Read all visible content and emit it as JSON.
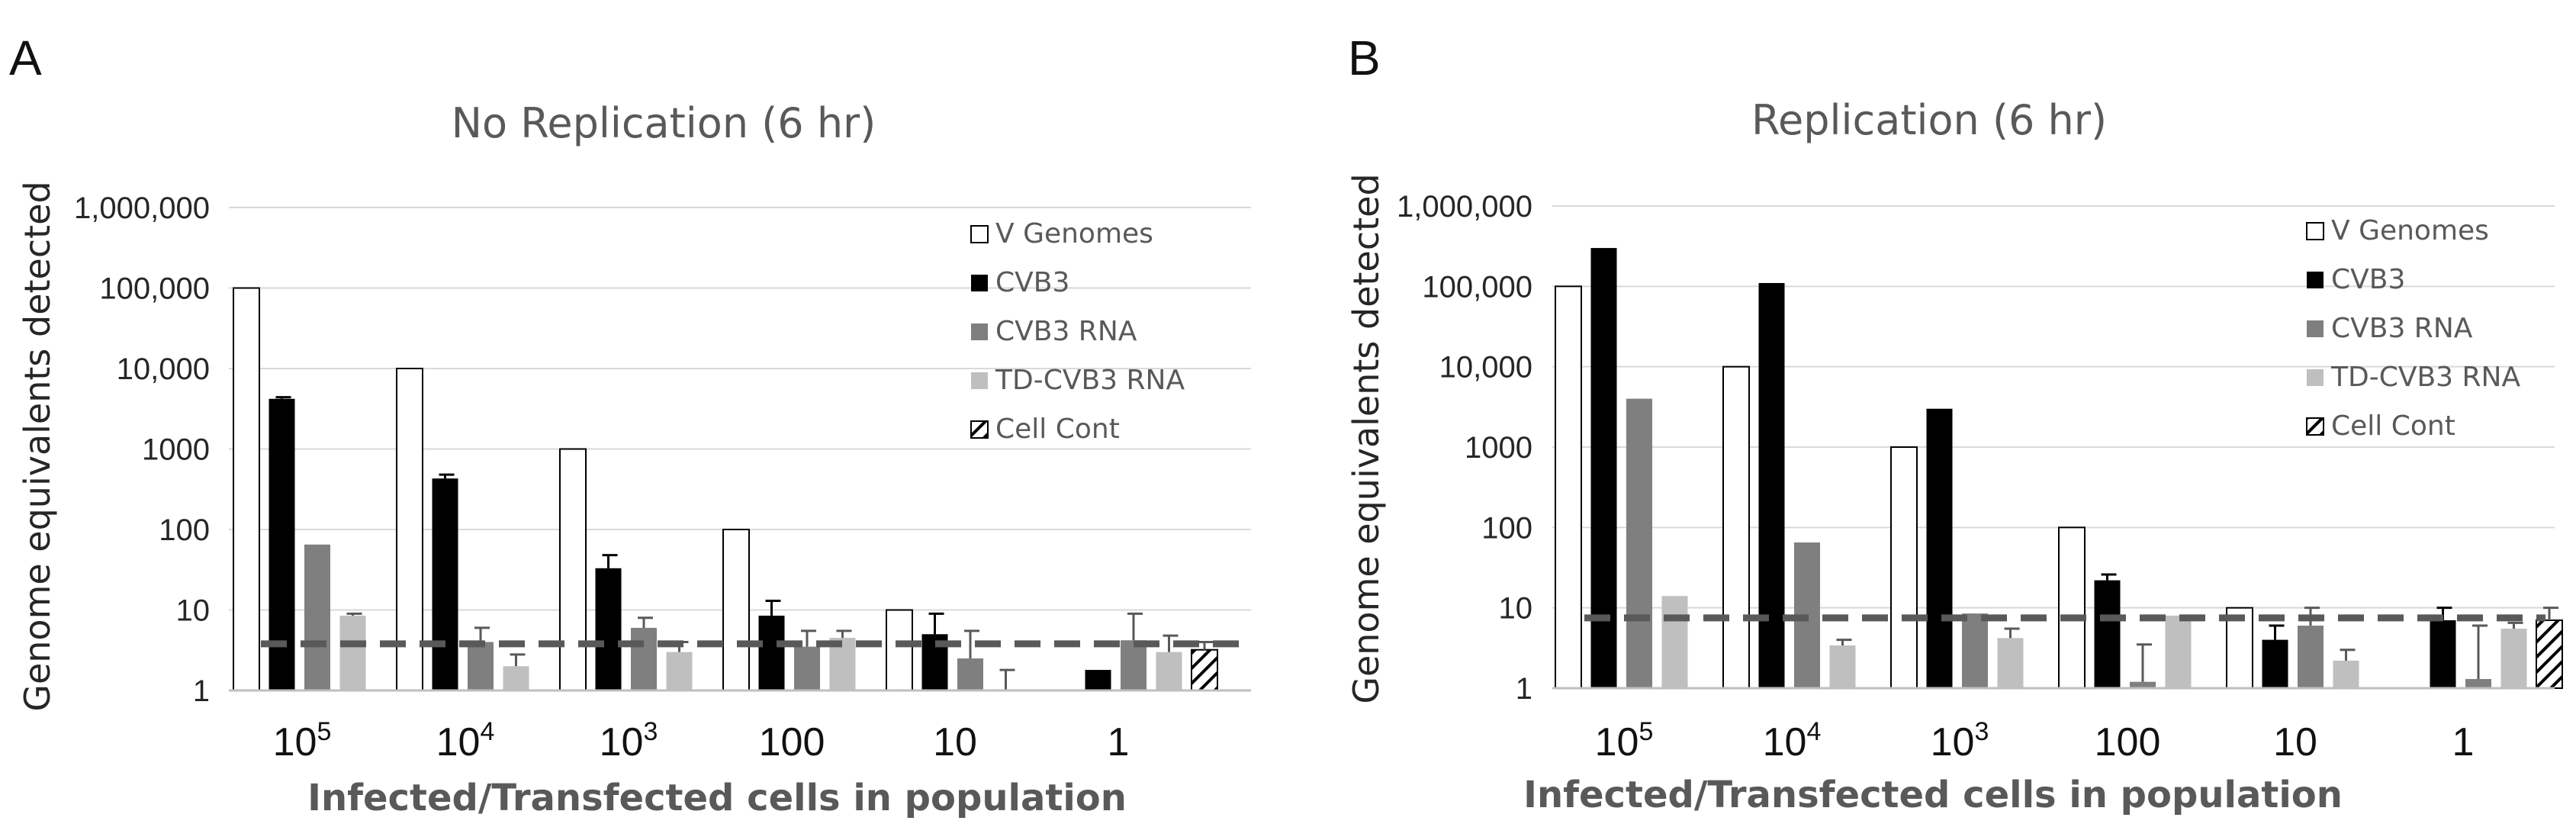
{
  "figure": {
    "panel_labels": [
      "A",
      "B"
    ]
  },
  "colors": {
    "v_genomes": "#ffffff",
    "cvb3": "#000000",
    "cvb3_rna": "#7f7f7f",
    "td_cvb3_rna": "#bfbfbf",
    "cell_cont": "hatched",
    "threshold_line": "#595959",
    "gridline": "#d9d9d9"
  },
  "chart_data": [
    {
      "panel": "A",
      "type": "bar",
      "title": "No Replication (6 hr)",
      "xlabel": "Infected/Transfected cells in population",
      "ylabel": "Genome equivalents detected",
      "yscale": "log",
      "ylim": [
        1,
        1000000
      ],
      "yticks": [
        1,
        10,
        100,
        1000,
        10000,
        100000,
        1000000
      ],
      "ytick_labels": [
        "1",
        "10",
        "100",
        "1000",
        "10,000",
        "100,000",
        "1,000,000"
      ],
      "categories": [
        "10^5",
        "10^4",
        "10^3",
        "100",
        "10",
        "1"
      ],
      "category_labels": [
        {
          "base": "10",
          "exp": "5"
        },
        {
          "base": "10",
          "exp": "4"
        },
        {
          "base": "10",
          "exp": "3"
        },
        {
          "base": "100",
          "exp": ""
        },
        {
          "base": "10",
          "exp": ""
        },
        {
          "base": "1",
          "exp": ""
        }
      ],
      "legend_position": "top-right",
      "series": [
        {
          "name": "V Genomes",
          "key": "v_genomes",
          "values": [
            100000,
            10000,
            1000,
            100,
            10,
            null
          ],
          "errors": [
            null,
            null,
            null,
            null,
            null,
            null
          ]
        },
        {
          "name": "CVB3",
          "key": "cvb3",
          "values": [
            4200,
            430,
            33,
            8.5,
            5,
            1.8
          ],
          "errors": [
            4400,
            480,
            48,
            13,
            9,
            null
          ]
        },
        {
          "name": "CVB3 RNA",
          "key": "cvb3_rna",
          "values": [
            65,
            4,
            6,
            3.5,
            2.5,
            4.2
          ],
          "errors": [
            null,
            6,
            8,
            5.5,
            5.5,
            9
          ]
        },
        {
          "name": "TD-CVB3 RNA",
          "key": "td_cvb3_rna",
          "values": [
            8.5,
            2,
            3,
            4.5,
            null,
            3
          ],
          "errors": [
            9,
            2.8,
            4,
            5.5,
            1.8,
            4.8
          ]
        },
        {
          "name": "Cell Cont",
          "key": "cell_cont",
          "values": [
            null,
            null,
            null,
            null,
            null,
            3.2
          ],
          "errors": [
            null,
            null,
            null,
            null,
            null,
            4
          ]
        }
      ],
      "threshold": 3.8
    },
    {
      "panel": "B",
      "type": "bar",
      "title": "Replication (6 hr)",
      "xlabel": "Infected/Transfected cells in population",
      "ylabel": "Genome equivalents detected",
      "yscale": "log",
      "ylim": [
        1,
        1000000
      ],
      "yticks": [
        1,
        10,
        100,
        1000,
        10000,
        100000,
        1000000
      ],
      "ytick_labels": [
        "1",
        "10",
        "100",
        "1000",
        "10,000",
        "100,000",
        "1,000,000"
      ],
      "categories": [
        "10^5",
        "10^4",
        "10^3",
        "100",
        "10",
        "1"
      ],
      "category_labels": [
        {
          "base": "10",
          "exp": "5"
        },
        {
          "base": "10",
          "exp": "4"
        },
        {
          "base": "10",
          "exp": "3"
        },
        {
          "base": "100",
          "exp": ""
        },
        {
          "base": "10",
          "exp": ""
        },
        {
          "base": "1",
          "exp": ""
        }
      ],
      "legend_position": "top-right",
      "series": [
        {
          "name": "V Genomes",
          "key": "v_genomes",
          "values": [
            100000,
            10000,
            1000,
            100,
            10,
            null
          ],
          "errors": [
            null,
            null,
            null,
            null,
            null,
            null
          ]
        },
        {
          "name": "CVB3",
          "key": "cvb3",
          "values": [
            300000,
            110000,
            3000,
            22,
            4,
            7
          ],
          "errors": [
            null,
            null,
            null,
            26,
            6,
            10
          ]
        },
        {
          "name": "CVB3 RNA",
          "key": "cvb3_rna",
          "values": [
            4000,
            65,
            8.5,
            1.2,
            6,
            1.3
          ],
          "errors": [
            null,
            null,
            null,
            3.5,
            10,
            6
          ]
        },
        {
          "name": "TD-CVB3 RNA",
          "key": "td_cvb3_rna",
          "values": [
            14,
            3.4,
            4.2,
            8,
            2.2,
            5.5
          ],
          "errors": [
            null,
            4,
            5.5,
            null,
            3,
            6.5
          ]
        },
        {
          "name": "Cell Cont",
          "key": "cell_cont",
          "values": [
            null,
            null,
            null,
            null,
            null,
            7
          ],
          "errors": [
            null,
            null,
            null,
            null,
            null,
            10
          ]
        }
      ],
      "threshold": 7.5
    }
  ]
}
